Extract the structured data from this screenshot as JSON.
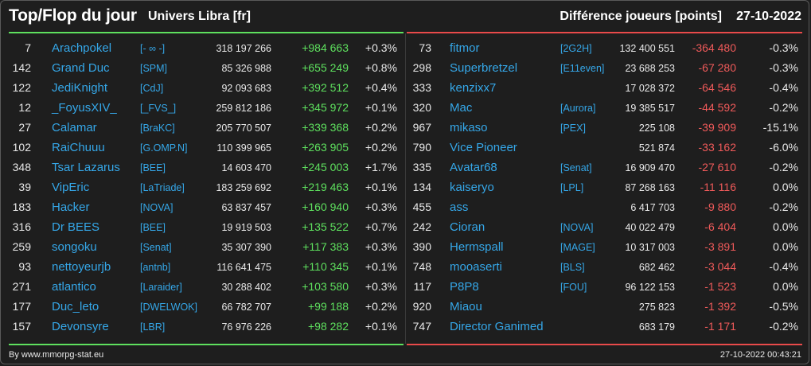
{
  "header": {
    "title": "Top/Flop du jour",
    "subtitle": "Univers Libra [fr]",
    "metric": "Différence joueurs [points]",
    "date": "27-10-2022"
  },
  "colors": {
    "top": "#5ee05e",
    "flop": "#e84a4a",
    "name": "#35a7e8",
    "background": "#1e1e1e"
  },
  "top": [
    {
      "rank": "7",
      "name": "Arachpokel",
      "guild": "[- ∞ -]",
      "points": "318 197 266",
      "diff": "+984 663",
      "pct": "+0.3%"
    },
    {
      "rank": "142",
      "name": "Grand Duc",
      "guild": "[SPM]",
      "points": "85 326 988",
      "diff": "+655 249",
      "pct": "+0.8%"
    },
    {
      "rank": "122",
      "name": "JediKnight",
      "guild": "[CdJ]",
      "points": "92 093 683",
      "diff": "+392 512",
      "pct": "+0.4%"
    },
    {
      "rank": "12",
      "name": "_FoyusXIV_",
      "guild": "[_FVS_]",
      "points": "259 812 186",
      "diff": "+345 972",
      "pct": "+0.1%"
    },
    {
      "rank": "27",
      "name": "Calamar",
      "guild": "[BraKC]",
      "points": "205 770 507",
      "diff": "+339 368",
      "pct": "+0.2%"
    },
    {
      "rank": "102",
      "name": "RaiChuuu",
      "guild": "[G.OMP.N]",
      "points": "110 399 965",
      "diff": "+263 905",
      "pct": "+0.2%"
    },
    {
      "rank": "348",
      "name": "Tsar Lazarus",
      "guild": "[BEE]",
      "points": "14 603 470",
      "diff": "+245 003",
      "pct": "+1.7%"
    },
    {
      "rank": "39",
      "name": "VipEric",
      "guild": "[LaTriade]",
      "points": "183 259 692",
      "diff": "+219 463",
      "pct": "+0.1%"
    },
    {
      "rank": "183",
      "name": "Hacker",
      "guild": "[NOVA]",
      "points": "63 837 457",
      "diff": "+160 940",
      "pct": "+0.3%"
    },
    {
      "rank": "316",
      "name": "Dr BEES",
      "guild": "[BEE]",
      "points": "19 919 503",
      "diff": "+135 522",
      "pct": "+0.7%"
    },
    {
      "rank": "259",
      "name": "songoku",
      "guild": "[Senat]",
      "points": "35 307 390",
      "diff": "+117 383",
      "pct": "+0.3%"
    },
    {
      "rank": "93",
      "name": "nettoyeurjb",
      "guild": "[antnb]",
      "points": "116 641 475",
      "diff": "+110 345",
      "pct": "+0.1%"
    },
    {
      "rank": "271",
      "name": "atlantico",
      "guild": "[Laraider]",
      "points": "30 288 402",
      "diff": "+103 580",
      "pct": "+0.3%"
    },
    {
      "rank": "177",
      "name": "Duc_leto",
      "guild": "[DWELWOK]",
      "points": "66 782 707",
      "diff": "+99 188",
      "pct": "+0.2%"
    },
    {
      "rank": "157",
      "name": "Devonsyre",
      "guild": "[LBR]",
      "points": "76 976 226",
      "diff": "+98 282",
      "pct": "+0.1%"
    }
  ],
  "flop": [
    {
      "rank": "73",
      "name": "fitmor",
      "guild": "[2G2H]",
      "points": "132 400 551",
      "diff": "-364 480",
      "pct": "-0.3%"
    },
    {
      "rank": "298",
      "name": "Superbretzel",
      "guild": "[E11even]",
      "points": "23 688 253",
      "diff": "-67 280",
      "pct": "-0.3%"
    },
    {
      "rank": "333",
      "name": "kenzixx7",
      "guild": "",
      "points": "17 028 372",
      "diff": "-64 546",
      "pct": "-0.4%"
    },
    {
      "rank": "320",
      "name": "Mac",
      "guild": "[Aurora]",
      "points": "19 385 517",
      "diff": "-44 592",
      "pct": "-0.2%"
    },
    {
      "rank": "967",
      "name": "mikaso",
      "guild": "[PEX]",
      "points": "225 108",
      "diff": "-39 909",
      "pct": "-15.1%"
    },
    {
      "rank": "790",
      "name": "Vice Pioneer",
      "guild": "",
      "points": "521 874",
      "diff": "-33 162",
      "pct": "-6.0%"
    },
    {
      "rank": "335",
      "name": "Avatar68",
      "guild": "[Senat]",
      "points": "16 909 470",
      "diff": "-27 610",
      "pct": "-0.2%"
    },
    {
      "rank": "134",
      "name": "kaiseryo",
      "guild": "[LPL]",
      "points": "87 268 163",
      "diff": "-11 116",
      "pct": "0.0%"
    },
    {
      "rank": "455",
      "name": "ass",
      "guild": "",
      "points": "6 417 703",
      "diff": "-9 880",
      "pct": "-0.2%"
    },
    {
      "rank": "242",
      "name": "Cioran",
      "guild": "[NOVA]",
      "points": "40 022 479",
      "diff": "-6 404",
      "pct": "0.0%"
    },
    {
      "rank": "390",
      "name": "Hermspall",
      "guild": "[MAGE]",
      "points": "10 317 003",
      "diff": "-3 891",
      "pct": "0.0%"
    },
    {
      "rank": "748",
      "name": "mooaserti",
      "guild": "[BLS]",
      "points": "682 462",
      "diff": "-3 044",
      "pct": "-0.4%"
    },
    {
      "rank": "117",
      "name": "P8P8",
      "guild": "[FOU]",
      "points": "96 122 153",
      "diff": "-1 523",
      "pct": "0.0%"
    },
    {
      "rank": "920",
      "name": "Miaou",
      "guild": "",
      "points": "275 823",
      "diff": "-1 392",
      "pct": "-0.5%"
    },
    {
      "rank": "747",
      "name": "Director Ganimed",
      "guild": "",
      "points": "683 179",
      "diff": "-1 171",
      "pct": "-0.2%"
    }
  ],
  "footer": {
    "credit": "By www.mmorpg-stat.eu",
    "timestamp": "27-10-2022 00:43:21"
  }
}
